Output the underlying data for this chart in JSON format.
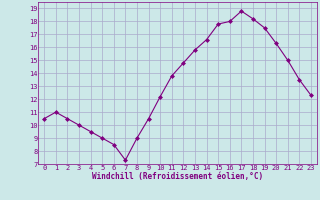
{
  "x": [
    0,
    1,
    2,
    3,
    4,
    5,
    6,
    7,
    8,
    9,
    10,
    11,
    12,
    13,
    14,
    15,
    16,
    17,
    18,
    19,
    20,
    21,
    22,
    23
  ],
  "y": [
    10.5,
    11.0,
    10.5,
    10.0,
    9.5,
    9.0,
    8.5,
    7.3,
    9.0,
    10.5,
    12.2,
    13.8,
    14.8,
    15.8,
    16.6,
    17.8,
    18.0,
    18.8,
    18.2,
    17.5,
    16.3,
    15.0,
    13.5,
    12.3
  ],
  "line_color": "#800080",
  "marker": "D",
  "marker_size": 2,
  "background_color": "#cce8e8",
  "grid_color": "#aaaacc",
  "xlabel": "Windchill (Refroidissement éolien,°C)",
  "ylim": [
    7,
    19.5
  ],
  "xlim": [
    -0.5,
    23.5
  ],
  "yticks": [
    7,
    8,
    9,
    10,
    11,
    12,
    13,
    14,
    15,
    16,
    17,
    18,
    19
  ],
  "xticks": [
    0,
    1,
    2,
    3,
    4,
    5,
    6,
    7,
    8,
    9,
    10,
    11,
    12,
    13,
    14,
    15,
    16,
    17,
    18,
    19,
    20,
    21,
    22,
    23
  ],
  "tick_fontsize": 5,
  "xlabel_fontsize": 5.5
}
